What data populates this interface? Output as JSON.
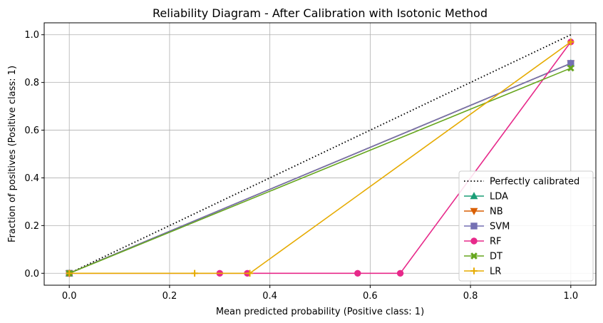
{
  "chart_data": {
    "type": "line",
    "title": "Reliability Diagram - After Calibration with Isotonic Method",
    "xlabel": "Mean predicted probability (Positive class: 1)",
    "ylabel": "Fraction of positives (Positive class: 1)",
    "xlim": [
      -0.05,
      1.05
    ],
    "ylim": [
      -0.05,
      1.05
    ],
    "xticks": [
      0.0,
      0.2,
      0.4,
      0.6,
      0.8,
      1.0
    ],
    "yticks": [
      0.0,
      0.2,
      0.4,
      0.6,
      0.8,
      1.0
    ],
    "xtick_labels": [
      "0.0",
      "0.2",
      "0.4",
      "0.6",
      "0.8",
      "1.0"
    ],
    "ytick_labels": [
      "0.0",
      "0.2",
      "0.4",
      "0.6",
      "0.8",
      "1.0"
    ],
    "grid": true,
    "legend_position": "lower-right",
    "series": [
      {
        "name": "Perfectly calibrated",
        "color": "#000000",
        "style": "dotted",
        "marker": "none",
        "x": [
          0.0,
          1.0
        ],
        "y": [
          0.0,
          1.0
        ]
      },
      {
        "name": "LDA",
        "color": "#1b9e77",
        "style": "solid",
        "marker": "triangle-up",
        "x": [
          0.0,
          1.0
        ],
        "y": [
          0.0,
          0.88
        ]
      },
      {
        "name": "NB",
        "color": "#d95f02",
        "style": "solid",
        "marker": "triangle-down",
        "x": [
          0.0,
          1.0
        ],
        "y": [
          0.0,
          0.88
        ]
      },
      {
        "name": "SVM",
        "color": "#7570b3",
        "style": "solid",
        "marker": "square",
        "x": [
          0.0,
          1.0
        ],
        "y": [
          0.0,
          0.88
        ]
      },
      {
        "name": "RF",
        "color": "#e7298a",
        "style": "solid",
        "marker": "circle",
        "x": [
          0.0,
          0.3,
          0.355,
          0.575,
          0.66,
          1.0
        ],
        "y": [
          0.0,
          0.0,
          0.0,
          0.0,
          0.0,
          0.97
        ]
      },
      {
        "name": "DT",
        "color": "#66a61e",
        "style": "solid",
        "marker": "x",
        "x": [
          0.0,
          1.0
        ],
        "y": [
          0.0,
          0.86
        ]
      },
      {
        "name": "LR",
        "color": "#e6ab02",
        "style": "solid",
        "marker": "plus",
        "x": [
          0.0,
          0.25,
          0.36,
          1.0
        ],
        "y": [
          0.0,
          0.0,
          0.0,
          0.97
        ]
      }
    ]
  }
}
